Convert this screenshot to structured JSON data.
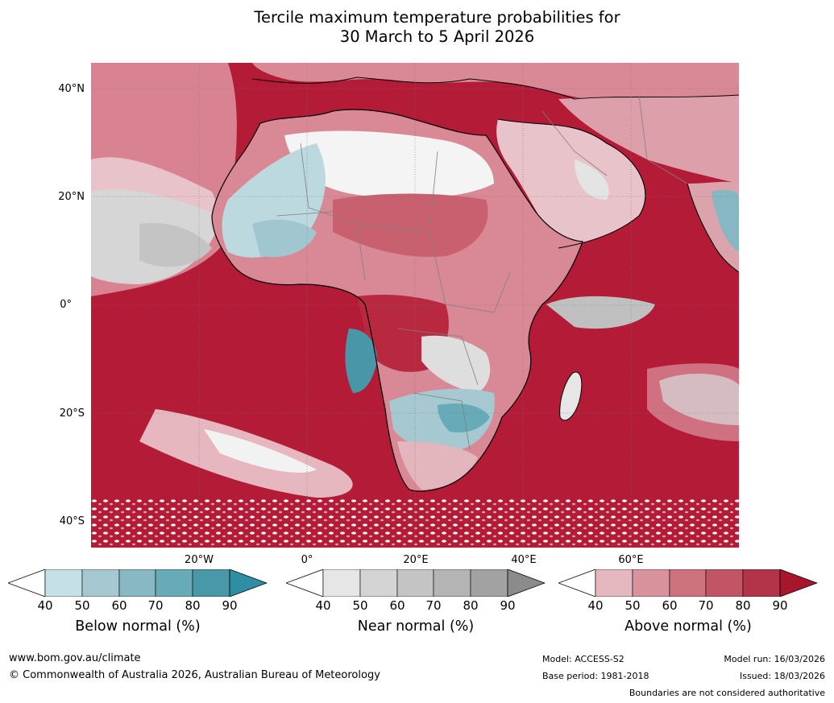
{
  "title": {
    "line1": "Tercile maximum temperature probabilities for",
    "line2": "30 March to 5 April 2026"
  },
  "map": {
    "lat_labels": [
      "40°N",
      "20°N",
      "0°",
      "20°S",
      "40°S"
    ],
    "lon_labels": [
      "20°W",
      "0°",
      "20°E",
      "40°E",
      "60°E"
    ],
    "colors": {
      "ocean_above": "#b31b36",
      "land_above": "#d98896",
      "below": "#a9cbd4",
      "near": "#d3d3d3"
    }
  },
  "colorbars": [
    {
      "name": "below",
      "label": "Below normal (%)",
      "ticks": [
        "40",
        "50",
        "60",
        "70",
        "80",
        "90"
      ],
      "colors": [
        "#ffffff",
        "#c5e0e7",
        "#a6c9d1",
        "#87b8c3",
        "#67aab8",
        "#4898aa",
        "#2f8ea4"
      ]
    },
    {
      "name": "near",
      "label": "Near normal (%)",
      "ticks": [
        "40",
        "50",
        "60",
        "70",
        "80",
        "90"
      ],
      "colors": [
        "#ffffff",
        "#e6e6e6",
        "#d4d4d4",
        "#c4c4c4",
        "#b4b4b4",
        "#a2a2a2",
        "#8b8b8b"
      ]
    },
    {
      "name": "above",
      "label": "Above normal (%)",
      "ticks": [
        "40",
        "50",
        "60",
        "70",
        "80",
        "90"
      ],
      "colors": [
        "#ffffff",
        "#e5b8bf",
        "#d8929c",
        "#cc737f",
        "#c15565",
        "#b33449",
        "#a8162e"
      ]
    }
  ],
  "footer": {
    "url": "www.bom.gov.au/climate",
    "copyright": "© Commonwealth of Australia 2026, Australian Bureau of Meteorology",
    "model": "Model: ACCESS-S2",
    "base_period": "Base period: 1981-2018",
    "model_run": "Model run: 16/03/2026",
    "issued": "Issued: 18/03/2026",
    "disclaimer": "Boundaries are not considered authoritative"
  }
}
